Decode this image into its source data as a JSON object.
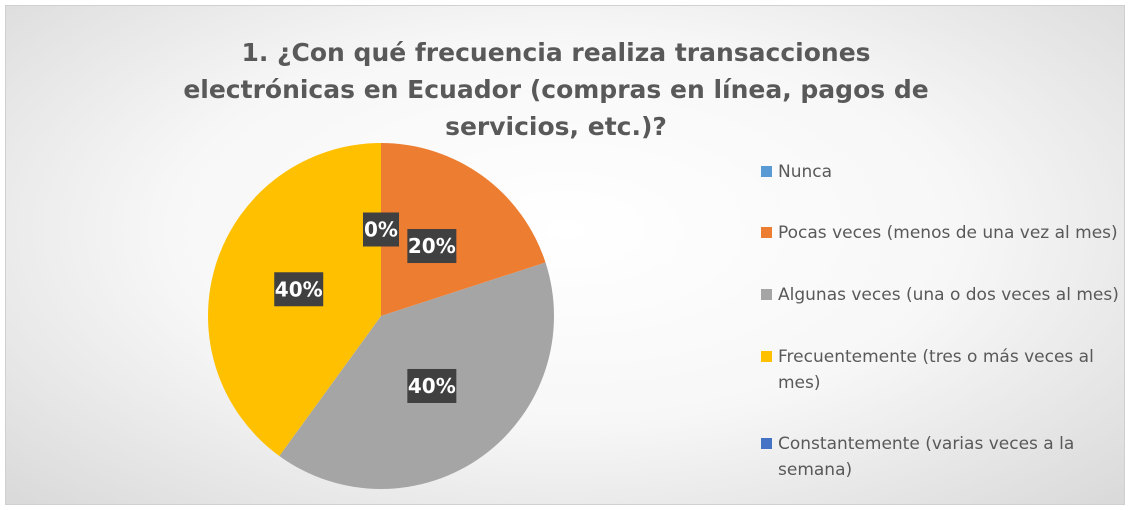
{
  "chart_data": {
    "type": "pie",
    "title": "1. ¿Con qué frecuencia realiza transacciones electrónicas en Ecuador (compras en línea, pagos de servicios, etc.)?",
    "categories": [
      "Nunca",
      "Pocas veces (menos de una vez al mes)",
      "Algunas veces (una o dos veces al mes)",
      "Frecuentemente (tres o más veces al mes)",
      "Constantemente (varias veces a la semana)"
    ],
    "values": [
      0,
      20,
      40,
      40,
      0
    ],
    "value_labels": [
      "0%",
      "20%",
      "40%",
      "40%",
      null
    ],
    "colors": [
      "#5b9bd5",
      "#ed7d31",
      "#a5a5a5",
      "#ffc000",
      "#4472c4"
    ],
    "legend": "right"
  }
}
